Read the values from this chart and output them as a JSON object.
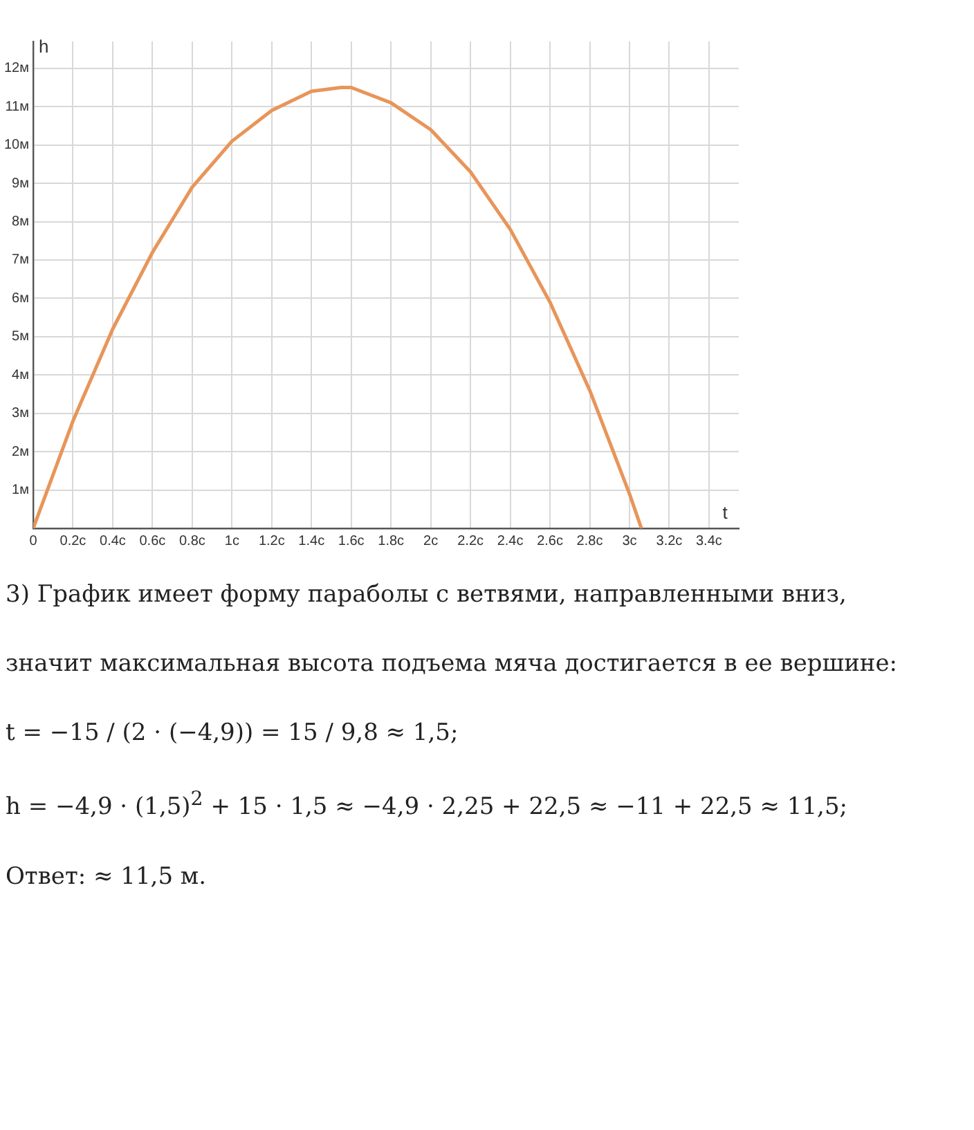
{
  "chart_data": {
    "type": "line",
    "xlabel": "t",
    "ylabel": "h",
    "x": [
      0,
      0.2,
      0.4,
      0.6,
      0.8,
      1.0,
      1.2,
      1.4,
      1.55,
      1.6,
      1.8,
      2.0,
      2.2,
      2.4,
      2.6,
      2.8,
      3.0,
      3.06
    ],
    "series": [
      {
        "color": "#e8955a",
        "values": [
          0,
          2.8,
          5.2,
          7.2,
          8.9,
          10.1,
          10.9,
          11.4,
          11.5,
          11.5,
          11.1,
          10.4,
          9.3,
          7.8,
          5.9,
          3.6,
          0.9,
          0
        ]
      }
    ],
    "xlim": [
      0,
      3.55
    ],
    "ylim": [
      0,
      12.7
    ],
    "xticks": [
      {
        "value": 0,
        "label": "0"
      },
      {
        "value": 0.2,
        "label": "0.2с"
      },
      {
        "value": 0.4,
        "label": "0.4с"
      },
      {
        "value": 0.6,
        "label": "0.6с"
      },
      {
        "value": 0.8,
        "label": "0.8с"
      },
      {
        "value": 1,
        "label": "1с"
      },
      {
        "value": 1.2,
        "label": "1.2с"
      },
      {
        "value": 1.4,
        "label": "1.4с"
      },
      {
        "value": 1.6,
        "label": "1.6с"
      },
      {
        "value": 1.8,
        "label": "1.8с"
      },
      {
        "value": 2,
        "label": "2с"
      },
      {
        "value": 2.2,
        "label": "2.2с"
      },
      {
        "value": 2.4,
        "label": "2.4с"
      },
      {
        "value": 2.6,
        "label": "2.6с"
      },
      {
        "value": 2.8,
        "label": "2.8с"
      },
      {
        "value": 3,
        "label": "3с"
      },
      {
        "value": 3.2,
        "label": "3.2с"
      },
      {
        "value": 3.4,
        "label": "3.4с"
      }
    ],
    "yticks": [
      {
        "value": 0,
        "label": null
      },
      {
        "value": 1,
        "label": "1м"
      },
      {
        "value": 2,
        "label": "2м"
      },
      {
        "value": 3,
        "label": "3м"
      },
      {
        "value": 4,
        "label": "4м"
      },
      {
        "value": 5,
        "label": "5м"
      },
      {
        "value": 6,
        "label": "6м"
      },
      {
        "value": 7,
        "label": "7м"
      },
      {
        "value": 8,
        "label": "8м"
      },
      {
        "value": 9,
        "label": "9м"
      },
      {
        "value": 10,
        "label": "10м"
      },
      {
        "value": 11,
        "label": "11м"
      },
      {
        "value": 12,
        "label": "12м"
      }
    ],
    "grid": true,
    "legend": false,
    "marker": "none",
    "line_style": "solid",
    "annotations": [
      "3) График имеет форму параболы с ветвями, направленными вниз,",
      "значит максимальная высота подъема мяча достигается в ее вершине:",
      "t = −15 / (2 · (−4,9)) = 15 / 9,8 ≈ 1,5;",
      "h = −4,9 · (1,5)$^{2}$ + 15 · 1,5 ≈ −4,9 · 2,25 + 22,5 ≈ −11 + 22,5 ≈ 11,5;",
      "Ответ:  ≈ 11,5 м."
    ]
  }
}
